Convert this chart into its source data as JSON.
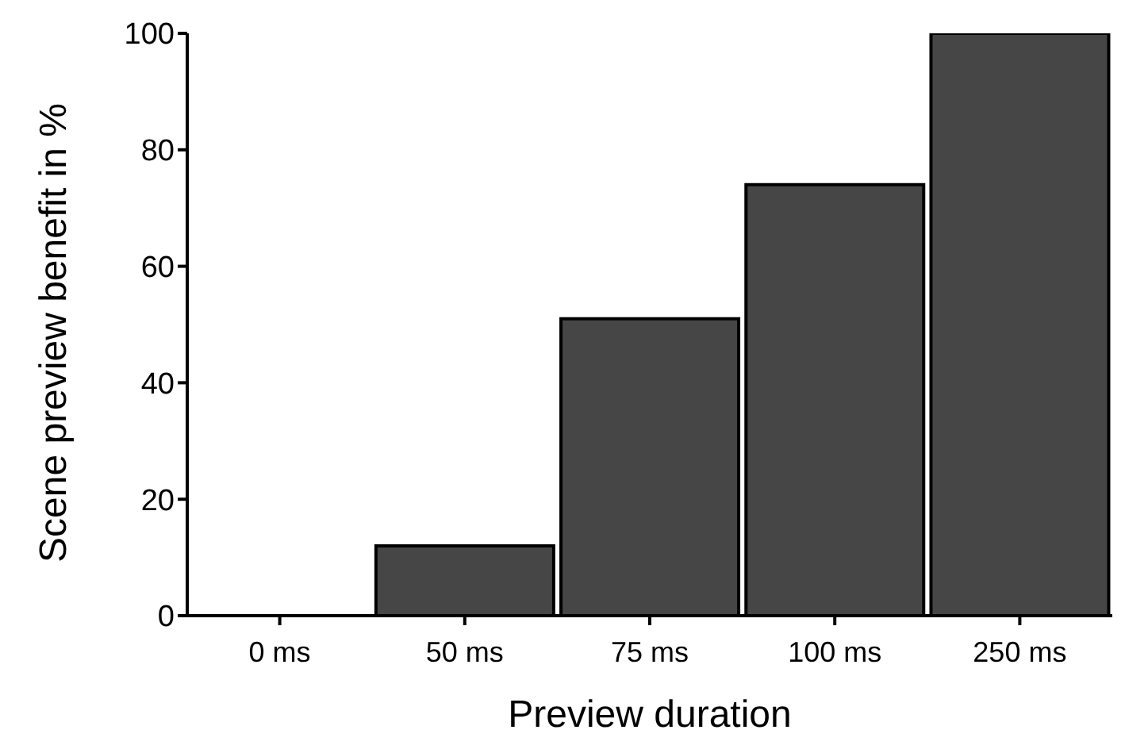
{
  "chart_data": {
    "type": "bar",
    "xlabel": "Preview duration",
    "ylabel": "Scene preview benefit in %",
    "categories": [
      "0 ms",
      "50 ms",
      "75 ms",
      "100 ms",
      "250 ms"
    ],
    "values": [
      0,
      12,
      51,
      74,
      100
    ],
    "color": "#464646",
    "ylim": [
      0,
      100
    ],
    "yticks": [
      0,
      20,
      40,
      60,
      80,
      100
    ],
    "grid": false,
    "legend": false
  }
}
